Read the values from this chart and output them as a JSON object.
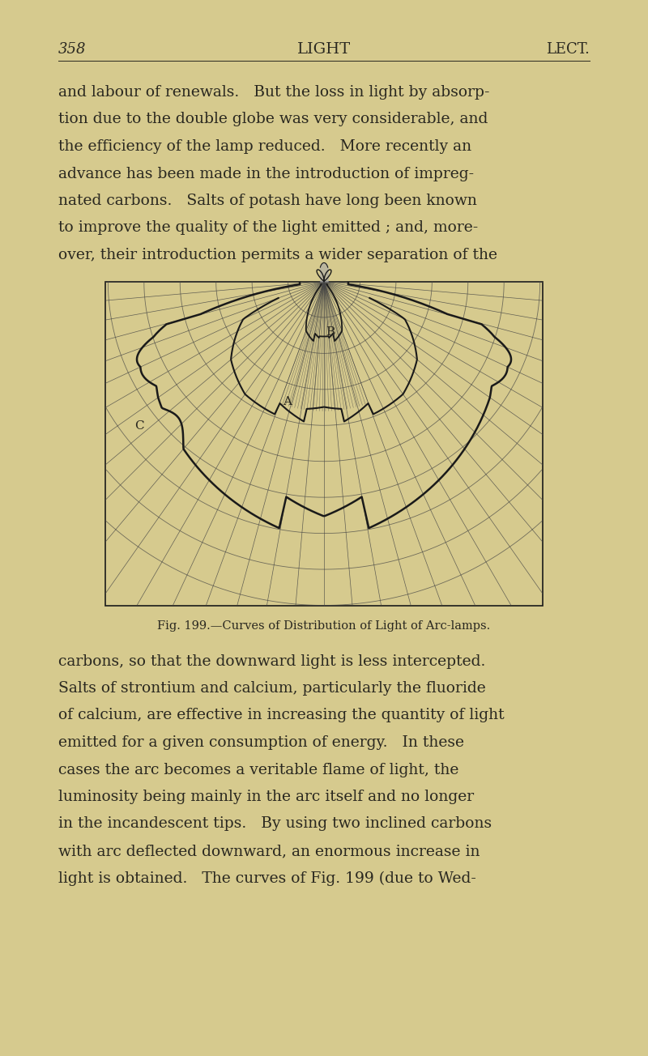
{
  "bg_color": "#d6ca8e",
  "text_color": "#2a2820",
  "dark_line": "#1a1a1a",
  "grid_line": "#444444",
  "fig_width": 8.0,
  "fig_height": 13.04,
  "page_number": "358",
  "header_center": "LIGHT",
  "header_right": "LECT.",
  "paragraph1": "and labour of renewals.   But the loss in light by absorp-\ntion due to the double globe was very considerable, and\nthe efficiency of the lamp reduced.   More recently an\nadvance has been made in the introduction of impreg-\nnated carbons.   Salts of potash have long been known\nto improve the quality of the light emitted ; and, more-\nover, their introduction permits a wider separation of the",
  "fig_caption": "Fig. 199.—Curves of Distribution of Light of Arc-lamps.",
  "paragraph2": "carbons, so that the downward light is less intercepted.\nSalts of strontium and calcium, particularly the fluoride\nof calcium, are effective in increasing the quantity of light\nemitted for a given consumption of energy.   In these\ncases the arc becomes a veritable flame of light, the\nluminosity being mainly in the arc itself and no longer\nin the incandescent tips.   By using two inclined carbons\nwith arc deflected downward, an enormous increase in\nlight is obtained.   The curves of Fig. 199 (due to Wed-",
  "label_A": "A",
  "label_B": "B",
  "label_C": "C"
}
